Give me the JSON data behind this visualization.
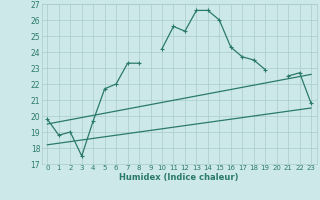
{
  "xlabel": "Humidex (Indice chaleur)",
  "bg_color": "#cde8e8",
  "grid_color": "#aacccc",
  "line_color": "#2a7a6a",
  "xlim": [
    -0.5,
    23.5
  ],
  "ylim": [
    17,
    27
  ],
  "xticks": [
    0,
    1,
    2,
    3,
    4,
    5,
    6,
    7,
    8,
    9,
    10,
    11,
    12,
    13,
    14,
    15,
    16,
    17,
    18,
    19,
    20,
    21,
    22,
    23
  ],
  "yticks": [
    17,
    18,
    19,
    20,
    21,
    22,
    23,
    24,
    25,
    26,
    27
  ],
  "curve1_x": [
    0,
    1,
    2,
    3,
    4,
    5,
    6,
    7,
    8,
    9,
    10,
    11,
    12,
    13,
    14,
    15,
    16,
    17,
    18,
    19,
    20,
    21,
    22,
    23
  ],
  "curve1_y": [
    19.8,
    18.8,
    19.0,
    17.5,
    19.7,
    21.7,
    22.0,
    23.3,
    23.3,
    null,
    24.2,
    25.6,
    25.3,
    26.6,
    26.6,
    26.0,
    24.3,
    23.7,
    23.5,
    22.9,
    null,
    22.5,
    22.7,
    20.8
  ],
  "line2_x": [
    0,
    23
  ],
  "line2_y": [
    19.5,
    22.6
  ],
  "line3_x": [
    0,
    23
  ],
  "line3_y": [
    18.2,
    20.5
  ]
}
